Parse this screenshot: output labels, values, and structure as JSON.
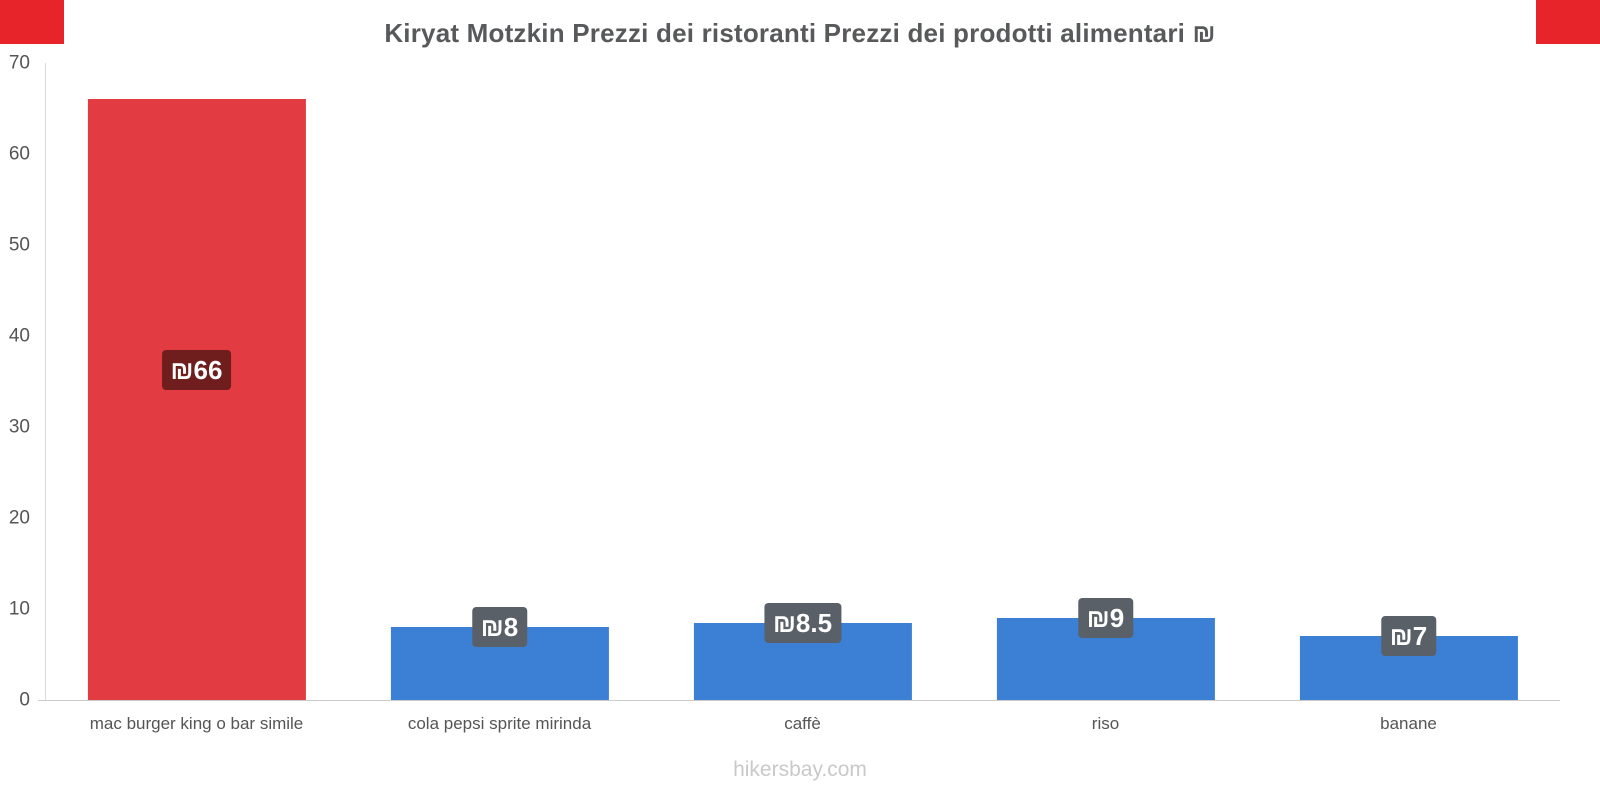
{
  "page": {
    "footer": "hikersbay.com"
  },
  "decor": {
    "corner_color": "#e8242b"
  },
  "chart_data": {
    "type": "bar",
    "title": "Kiryat Motzkin Prezzi dei ristoranti Prezzi dei prodotti alimentari ₪",
    "categories": [
      "mac burger king o bar simile",
      "cola pepsi sprite mirinda",
      "caffè",
      "riso",
      "banane"
    ],
    "values": [
      66,
      8,
      8.5,
      9,
      7
    ],
    "value_labels": [
      "₪66",
      "₪8",
      "₪8.5",
      "₪9",
      "₪7"
    ],
    "bar_colors": [
      "#e23b41",
      "#3b80d5",
      "#3b80d5",
      "#3b80d5",
      "#3b80d5"
    ],
    "badge_colors": [
      "#6f1d1d",
      "#5a6068",
      "#5a6068",
      "#5a6068",
      "#5a6068"
    ],
    "currency": "₪",
    "xlabel": "",
    "ylabel": "",
    "ylim": [
      0,
      70
    ],
    "yticks": [
      0,
      10,
      20,
      30,
      40,
      50,
      60,
      70
    ],
    "grid": "off",
    "legend": "none"
  }
}
